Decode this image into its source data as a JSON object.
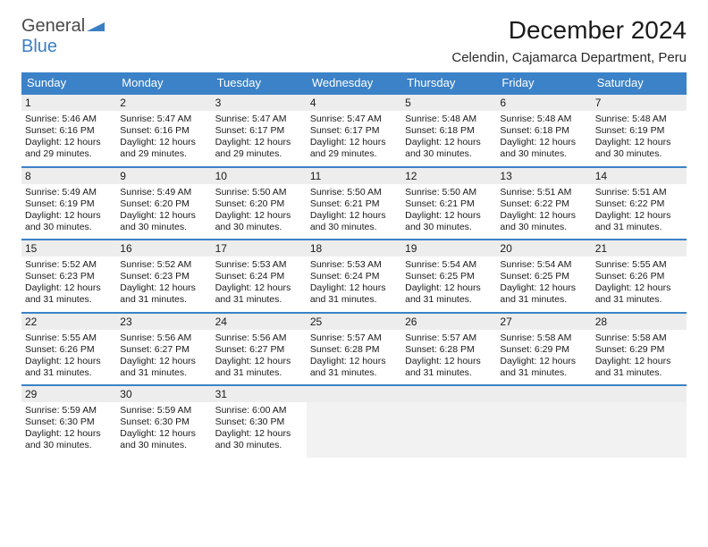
{
  "brand": {
    "part1": "General",
    "part2": "Blue"
  },
  "title": "December 2024",
  "location": "Celendin, Cajamarca Department, Peru",
  "colors": {
    "header_bg": "#3b82c8",
    "header_fg": "#ffffff",
    "daynum_bg": "#ededed",
    "rule": "#3b82c8",
    "page_bg": "#ffffff"
  },
  "dayNames": [
    "Sunday",
    "Monday",
    "Tuesday",
    "Wednesday",
    "Thursday",
    "Friday",
    "Saturday"
  ],
  "weeks": [
    [
      {
        "n": "1",
        "sr": "5:46 AM",
        "ss": "6:16 PM",
        "dl": "12 hours and 29 minutes."
      },
      {
        "n": "2",
        "sr": "5:47 AM",
        "ss": "6:16 PM",
        "dl": "12 hours and 29 minutes."
      },
      {
        "n": "3",
        "sr": "5:47 AM",
        "ss": "6:17 PM",
        "dl": "12 hours and 29 minutes."
      },
      {
        "n": "4",
        "sr": "5:47 AM",
        "ss": "6:17 PM",
        "dl": "12 hours and 29 minutes."
      },
      {
        "n": "5",
        "sr": "5:48 AM",
        "ss": "6:18 PM",
        "dl": "12 hours and 30 minutes."
      },
      {
        "n": "6",
        "sr": "5:48 AM",
        "ss": "6:18 PM",
        "dl": "12 hours and 30 minutes."
      },
      {
        "n": "7",
        "sr": "5:48 AM",
        "ss": "6:19 PM",
        "dl": "12 hours and 30 minutes."
      }
    ],
    [
      {
        "n": "8",
        "sr": "5:49 AM",
        "ss": "6:19 PM",
        "dl": "12 hours and 30 minutes."
      },
      {
        "n": "9",
        "sr": "5:49 AM",
        "ss": "6:20 PM",
        "dl": "12 hours and 30 minutes."
      },
      {
        "n": "10",
        "sr": "5:50 AM",
        "ss": "6:20 PM",
        "dl": "12 hours and 30 minutes."
      },
      {
        "n": "11",
        "sr": "5:50 AM",
        "ss": "6:21 PM",
        "dl": "12 hours and 30 minutes."
      },
      {
        "n": "12",
        "sr": "5:50 AM",
        "ss": "6:21 PM",
        "dl": "12 hours and 30 minutes."
      },
      {
        "n": "13",
        "sr": "5:51 AM",
        "ss": "6:22 PM",
        "dl": "12 hours and 30 minutes."
      },
      {
        "n": "14",
        "sr": "5:51 AM",
        "ss": "6:22 PM",
        "dl": "12 hours and 31 minutes."
      }
    ],
    [
      {
        "n": "15",
        "sr": "5:52 AM",
        "ss": "6:23 PM",
        "dl": "12 hours and 31 minutes."
      },
      {
        "n": "16",
        "sr": "5:52 AM",
        "ss": "6:23 PM",
        "dl": "12 hours and 31 minutes."
      },
      {
        "n": "17",
        "sr": "5:53 AM",
        "ss": "6:24 PM",
        "dl": "12 hours and 31 minutes."
      },
      {
        "n": "18",
        "sr": "5:53 AM",
        "ss": "6:24 PM",
        "dl": "12 hours and 31 minutes."
      },
      {
        "n": "19",
        "sr": "5:54 AM",
        "ss": "6:25 PM",
        "dl": "12 hours and 31 minutes."
      },
      {
        "n": "20",
        "sr": "5:54 AM",
        "ss": "6:25 PM",
        "dl": "12 hours and 31 minutes."
      },
      {
        "n": "21",
        "sr": "5:55 AM",
        "ss": "6:26 PM",
        "dl": "12 hours and 31 minutes."
      }
    ],
    [
      {
        "n": "22",
        "sr": "5:55 AM",
        "ss": "6:26 PM",
        "dl": "12 hours and 31 minutes."
      },
      {
        "n": "23",
        "sr": "5:56 AM",
        "ss": "6:27 PM",
        "dl": "12 hours and 31 minutes."
      },
      {
        "n": "24",
        "sr": "5:56 AM",
        "ss": "6:27 PM",
        "dl": "12 hours and 31 minutes."
      },
      {
        "n": "25",
        "sr": "5:57 AM",
        "ss": "6:28 PM",
        "dl": "12 hours and 31 minutes."
      },
      {
        "n": "26",
        "sr": "5:57 AM",
        "ss": "6:28 PM",
        "dl": "12 hours and 31 minutes."
      },
      {
        "n": "27",
        "sr": "5:58 AM",
        "ss": "6:29 PM",
        "dl": "12 hours and 31 minutes."
      },
      {
        "n": "28",
        "sr": "5:58 AM",
        "ss": "6:29 PM",
        "dl": "12 hours and 31 minutes."
      }
    ],
    [
      {
        "n": "29",
        "sr": "5:59 AM",
        "ss": "6:30 PM",
        "dl": "12 hours and 30 minutes."
      },
      {
        "n": "30",
        "sr": "5:59 AM",
        "ss": "6:30 PM",
        "dl": "12 hours and 30 minutes."
      },
      {
        "n": "31",
        "sr": "6:00 AM",
        "ss": "6:30 PM",
        "dl": "12 hours and 30 minutes."
      },
      null,
      null,
      null,
      null
    ]
  ],
  "labels": {
    "sunrise": "Sunrise:",
    "sunset": "Sunset:",
    "daylight": "Daylight:"
  }
}
